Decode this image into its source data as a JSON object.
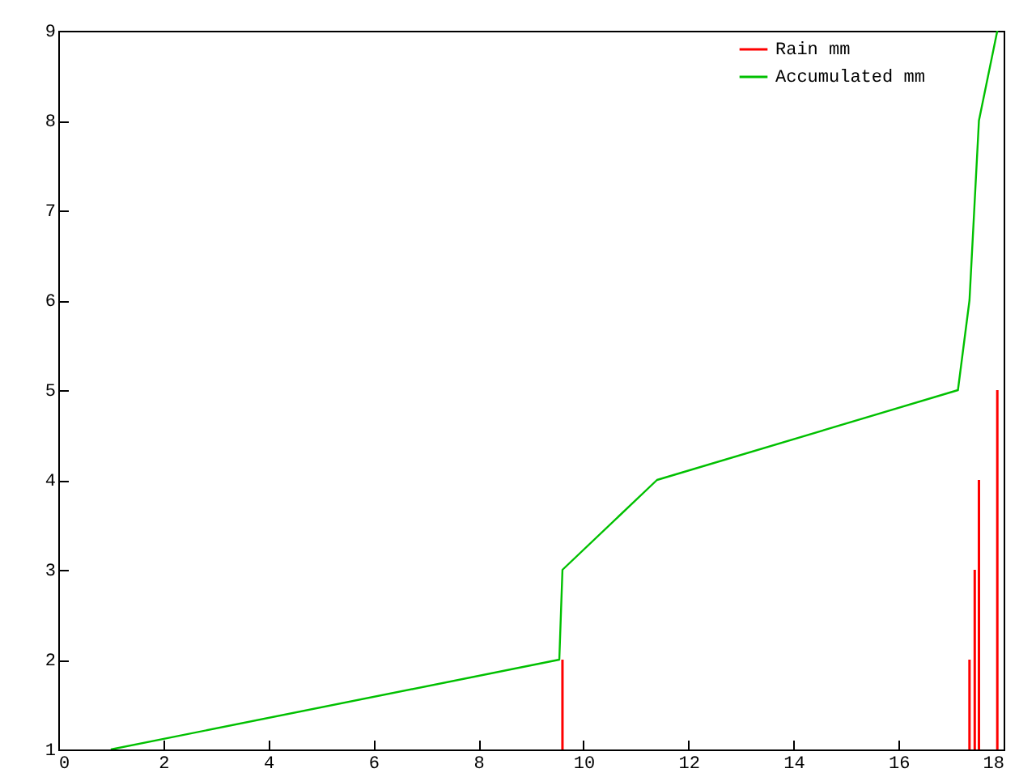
{
  "chart_data": {
    "type": "line",
    "xlim": [
      0,
      18
    ],
    "xticks": [
      0,
      2,
      4,
      6,
      8,
      10,
      12,
      14,
      16,
      18
    ],
    "ylim": [
      1,
      9
    ],
    "yticks": [
      1,
      2,
      3,
      4,
      5,
      6,
      7,
      8,
      9
    ],
    "grid": false,
    "legend": "top right",
    "series": [
      {
        "name": "Rain mm",
        "type": "bar",
        "color": "#ff0000",
        "x": [
          9.6,
          17.35,
          17.45,
          17.53,
          17.88
        ],
        "values": [
          2,
          2,
          3,
          4,
          5
        ]
      },
      {
        "name": "Accumulated mm",
        "color": "#00c000",
        "x": [
          1.0,
          9.54,
          9.6,
          11.4,
          17.13,
          17.35,
          17.53,
          17.88
        ],
        "values": [
          1,
          2,
          3,
          4,
          5,
          6,
          8,
          9
        ]
      }
    ]
  }
}
